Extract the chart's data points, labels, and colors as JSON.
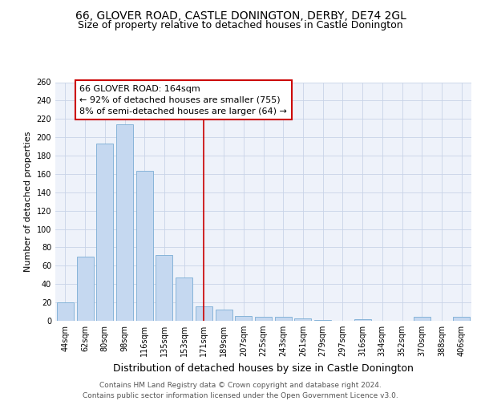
{
  "title": "66, GLOVER ROAD, CASTLE DONINGTON, DERBY, DE74 2GL",
  "subtitle": "Size of property relative to detached houses in Castle Donington",
  "xlabel": "Distribution of detached houses by size in Castle Donington",
  "ylabel": "Number of detached properties",
  "bar_labels": [
    "44sqm",
    "62sqm",
    "80sqm",
    "98sqm",
    "116sqm",
    "135sqm",
    "153sqm",
    "171sqm",
    "189sqm",
    "207sqm",
    "225sqm",
    "243sqm",
    "261sqm",
    "279sqm",
    "297sqm",
    "316sqm",
    "334sqm",
    "352sqm",
    "370sqm",
    "388sqm",
    "406sqm"
  ],
  "bar_values": [
    20,
    70,
    193,
    214,
    163,
    72,
    47,
    16,
    12,
    5,
    4,
    4,
    3,
    1,
    0,
    2,
    0,
    0,
    4,
    0,
    4
  ],
  "bar_color": "#c5d8f0",
  "bar_edgecolor": "#7aadd4",
  "vline_x": 7,
  "vline_color": "#cc0000",
  "annotation_text": "66 GLOVER ROAD: 164sqm\n← 92% of detached houses are smaller (755)\n8% of semi-detached houses are larger (64) →",
  "annotation_box_color": "#ffffff",
  "annotation_box_edgecolor": "#cc0000",
  "ylim": [
    0,
    260
  ],
  "yticks": [
    0,
    20,
    40,
    60,
    80,
    100,
    120,
    140,
    160,
    180,
    200,
    220,
    240,
    260
  ],
  "footer_line1": "Contains HM Land Registry data © Crown copyright and database right 2024.",
  "footer_line2": "Contains public sector information licensed under the Open Government Licence v3.0.",
  "bg_color": "#eef2fa",
  "grid_color": "#c8d4e8",
  "title_fontsize": 10,
  "subtitle_fontsize": 9,
  "xlabel_fontsize": 9,
  "ylabel_fontsize": 8,
  "tick_fontsize": 7,
  "footer_fontsize": 6.5,
  "ann_fontsize": 8
}
